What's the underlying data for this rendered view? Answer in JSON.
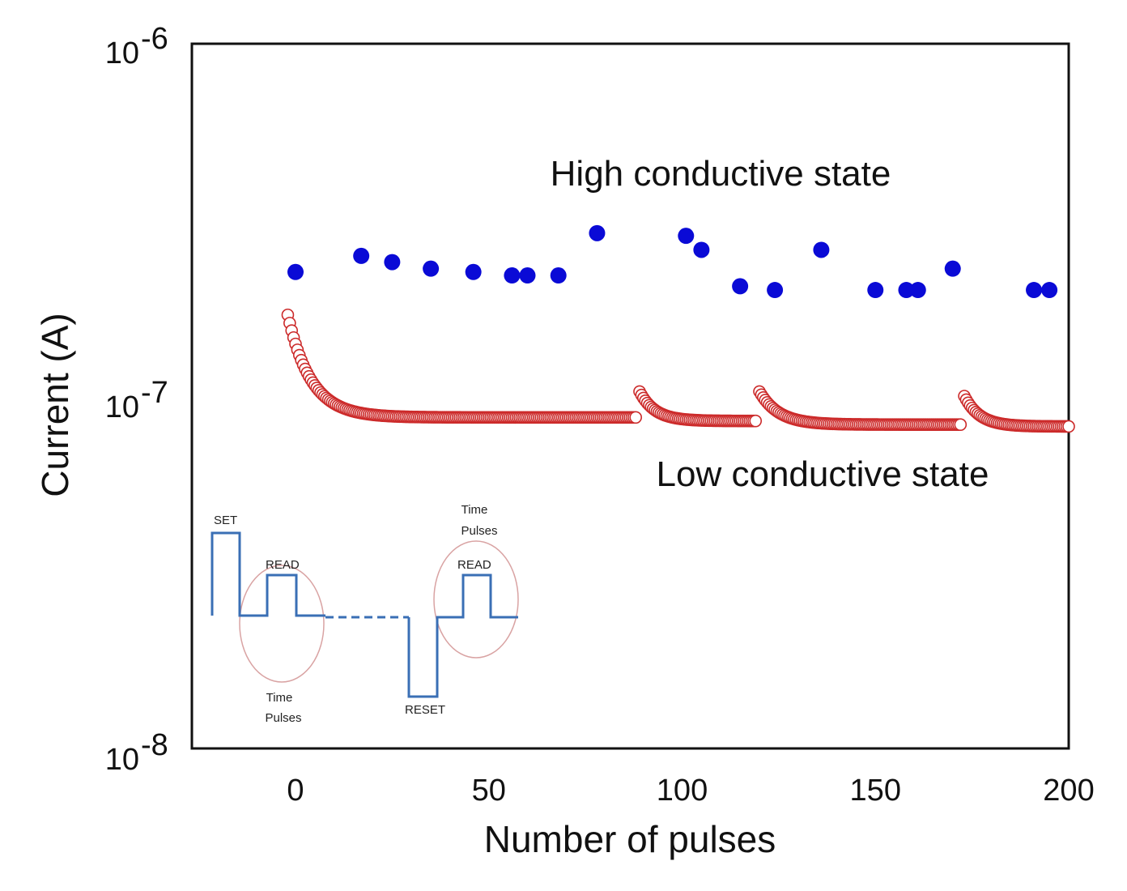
{
  "chart_data": {
    "type": "scatter",
    "title": "",
    "xlabel": "Number of pulses",
    "ylabel": "Current (A)",
    "xlim": [
      -27,
      200
    ],
    "ylim": [
      1e-08,
      1e-06
    ],
    "yscale": "log",
    "x_ticks": [
      0,
      50,
      100,
      150,
      200
    ],
    "x_tick_labels": [
      "0",
      "50",
      "100",
      "150",
      "200"
    ],
    "y_ticks": [
      {
        "value": 1e-06,
        "base": "10",
        "exp": "-6"
      },
      {
        "value": 1e-07,
        "base": "10",
        "exp": "-7"
      },
      {
        "value": 1e-08,
        "base": "10",
        "exp": "-8"
      }
    ],
    "grid": false,
    "legend": "none",
    "series": [
      {
        "name": "High conductive state",
        "marker": "filled-circle",
        "color": "#0a0ad6",
        "points": [
          [
            0,
            2.25e-07
          ],
          [
            17,
            2.5e-07
          ],
          [
            25,
            2.4e-07
          ],
          [
            35,
            2.3e-07
          ],
          [
            46,
            2.25e-07
          ],
          [
            56,
            2.2e-07
          ],
          [
            60,
            2.2e-07
          ],
          [
            68,
            2.2e-07
          ],
          [
            78,
            2.9e-07
          ],
          [
            101,
            2.85e-07
          ],
          [
            105,
            2.6e-07
          ],
          [
            115,
            2.05e-07
          ],
          [
            124,
            2e-07
          ],
          [
            136,
            2.6e-07
          ],
          [
            150,
            2e-07
          ],
          [
            158,
            2e-07
          ],
          [
            161,
            2e-07
          ],
          [
            170,
            2.3e-07
          ],
          [
            191,
            2e-07
          ],
          [
            195,
            2e-07
          ]
        ]
      },
      {
        "name": "Low conductive state",
        "marker": "open-circle",
        "color": "#cc2a2a",
        "segments": [
          {
            "x_start": -2,
            "x_end": 88,
            "y_start": 1.7e-07,
            "y_end": 8.7e-08,
            "tau": 6
          },
          {
            "x_start": 89,
            "x_end": 119,
            "y_start": 1.03e-07,
            "y_end": 8.5e-08,
            "tau": 4
          },
          {
            "x_start": 120,
            "x_end": 172,
            "y_start": 1.03e-07,
            "y_end": 8.3e-08,
            "tau": 5
          },
          {
            "x_start": 173,
            "x_end": 200,
            "y_start": 1e-07,
            "y_end": 8.2e-08,
            "tau": 4
          }
        ]
      }
    ],
    "annotations": [
      {
        "text": "High conductive state",
        "x": 110,
        "y": 4.05e-07
      },
      {
        "text": "Low conductive state",
        "x": 136,
        "y": 6e-08
      }
    ],
    "inset": {
      "set_label": "SET",
      "read_label_1": "READ",
      "read_label_2": "READ",
      "reset_label": "RESET",
      "time_pulses_1": [
        "Time",
        "Pulses"
      ],
      "time_pulses_2": [
        "Time",
        "Pulses"
      ],
      "line_color": "#3a6fb5",
      "ellipse_color": "#d9a3a3"
    }
  }
}
